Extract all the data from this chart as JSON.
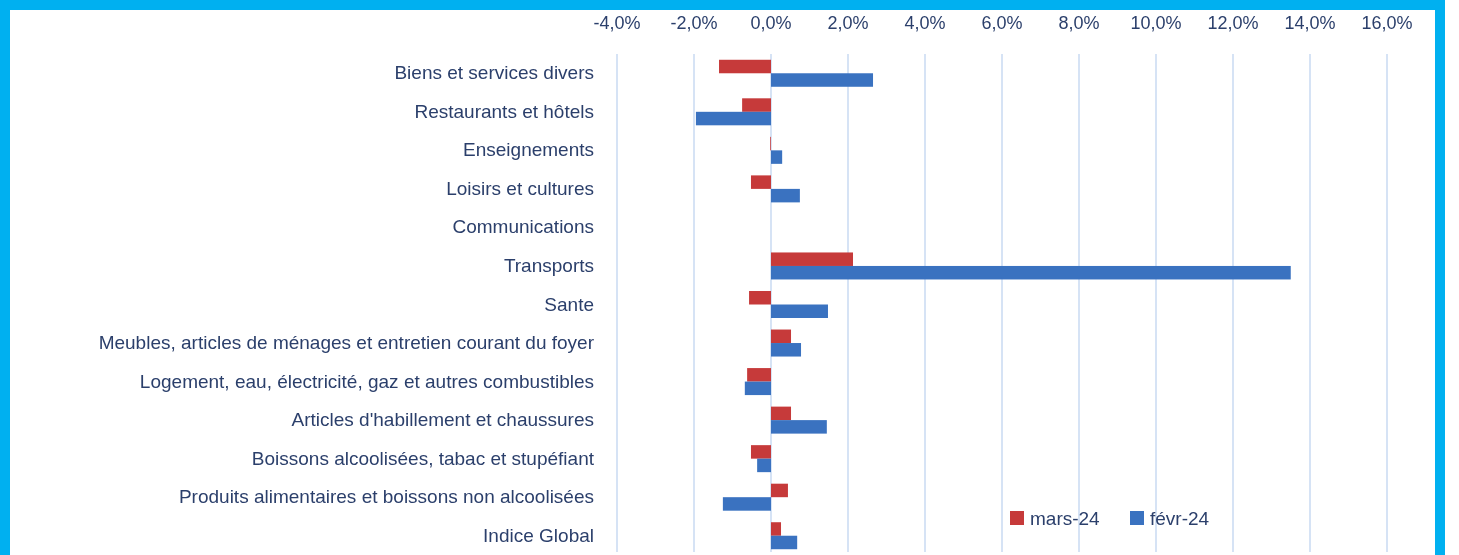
{
  "chart_data": {
    "type": "bar",
    "orientation": "horizontal",
    "categories": [
      "Biens et services divers",
      "Restaurants et hôtels",
      "Enseignements",
      "Loisirs et cultures",
      "Communications",
      "Transports",
      "Sante",
      "Meubles, articles de ménages et entretien courant du foyer",
      "Logement, eau, électricité, gaz et autres combustibles",
      "Articles d'habillement et chaussures",
      "Boissons alcoolisées, tabac et stupéfiant",
      "Produits alimentaires et boissons non alcoolisées",
      "Indice Global"
    ],
    "series": [
      {
        "name": "mars-24",
        "color": "#c63a3a",
        "values": [
          -1.35,
          -0.75,
          -0.02,
          -0.52,
          0,
          2.13,
          -0.57,
          0.52,
          -0.62,
          0.52,
          -0.52,
          0.44,
          0.26
        ]
      },
      {
        "name": "févr-24",
        "color": "#3a72c0",
        "values": [
          2.65,
          -1.95,
          0.29,
          0.75,
          0,
          13.5,
          1.48,
          0.78,
          -0.68,
          1.45,
          -0.36,
          -1.25,
          0.68
        ]
      }
    ],
    "xlim": [
      -4,
      16
    ],
    "xticks": [
      {
        "value": -4,
        "label": "-4,0%"
      },
      {
        "value": -2,
        "label": "-2,0%"
      },
      {
        "value": 0,
        "label": "0,0%"
      },
      {
        "value": 2,
        "label": "2,0%"
      },
      {
        "value": 4,
        "label": "4,0%"
      },
      {
        "value": 6,
        "label": "6,0%"
      },
      {
        "value": 8,
        "label": "8,0%"
      },
      {
        "value": 10,
        "label": "10,0%"
      },
      {
        "value": 12,
        "label": "12,0%"
      },
      {
        "value": 14,
        "label": "14,0%"
      },
      {
        "value": 16,
        "label": "16,0%"
      }
    ],
    "grid": "x",
    "legend": "bottom right"
  }
}
